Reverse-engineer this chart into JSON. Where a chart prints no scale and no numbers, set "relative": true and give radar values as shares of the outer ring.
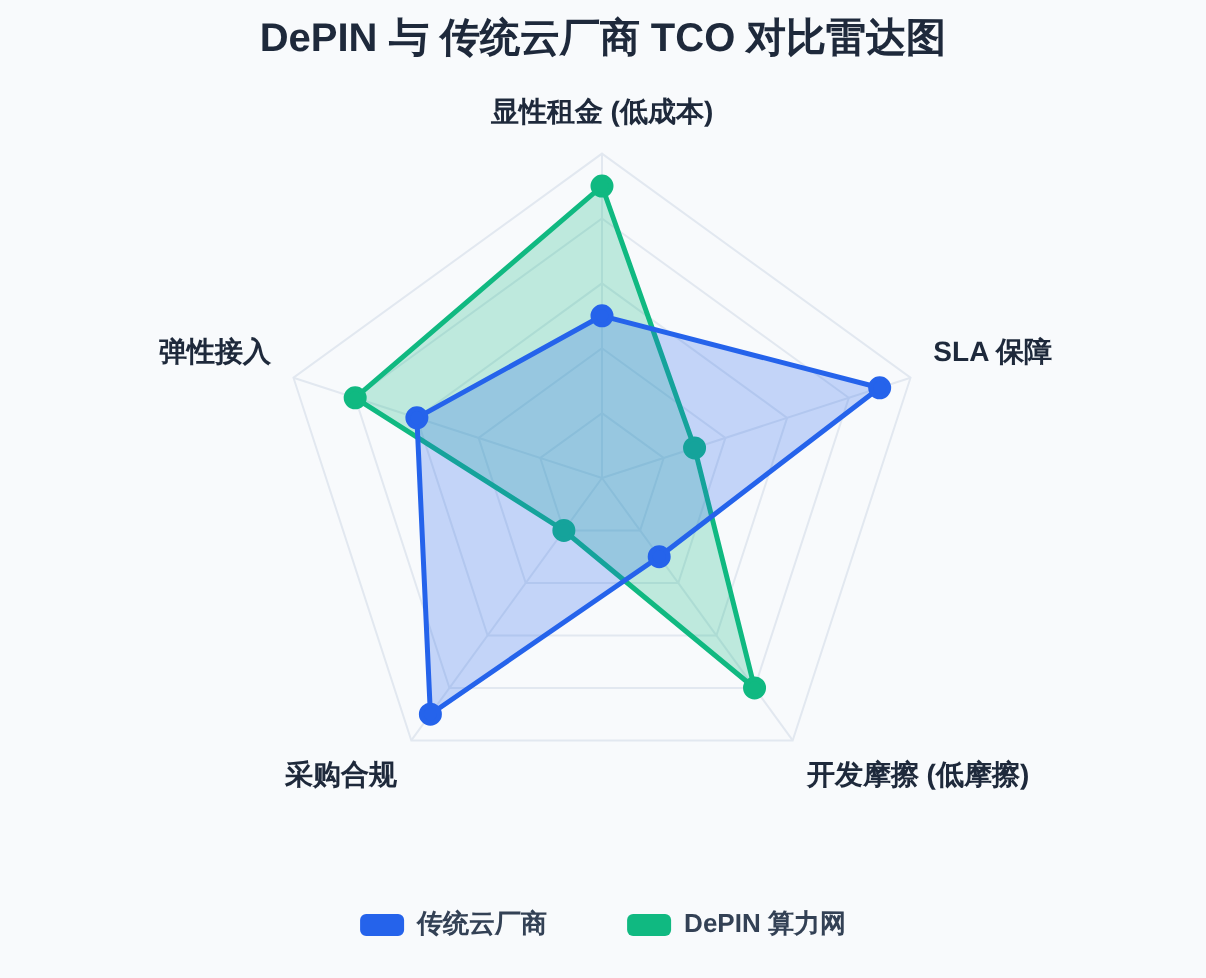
{
  "chart_data": {
    "type": "radar",
    "title": "DePIN 与 传统云厂商 TCO 对比雷达图",
    "categories": [
      "显性租金 (低成本)",
      "SLA 保障",
      "开发摩擦 (低摩擦)",
      "采购合规",
      "弹性接入"
    ],
    "relative": true,
    "series": [
      {
        "name": "传统云厂商",
        "color": "#2563eb",
        "values": [
          0.5,
          0.9,
          0.3,
          0.9,
          0.6
        ]
      },
      {
        "name": "DePIN 算力网",
        "color": "#10b981",
        "values": [
          0.9,
          0.3,
          0.8,
          0.2,
          0.8
        ]
      }
    ],
    "grid": true,
    "legend": "bottom",
    "marker": "circle",
    "line_style": "solid"
  }
}
